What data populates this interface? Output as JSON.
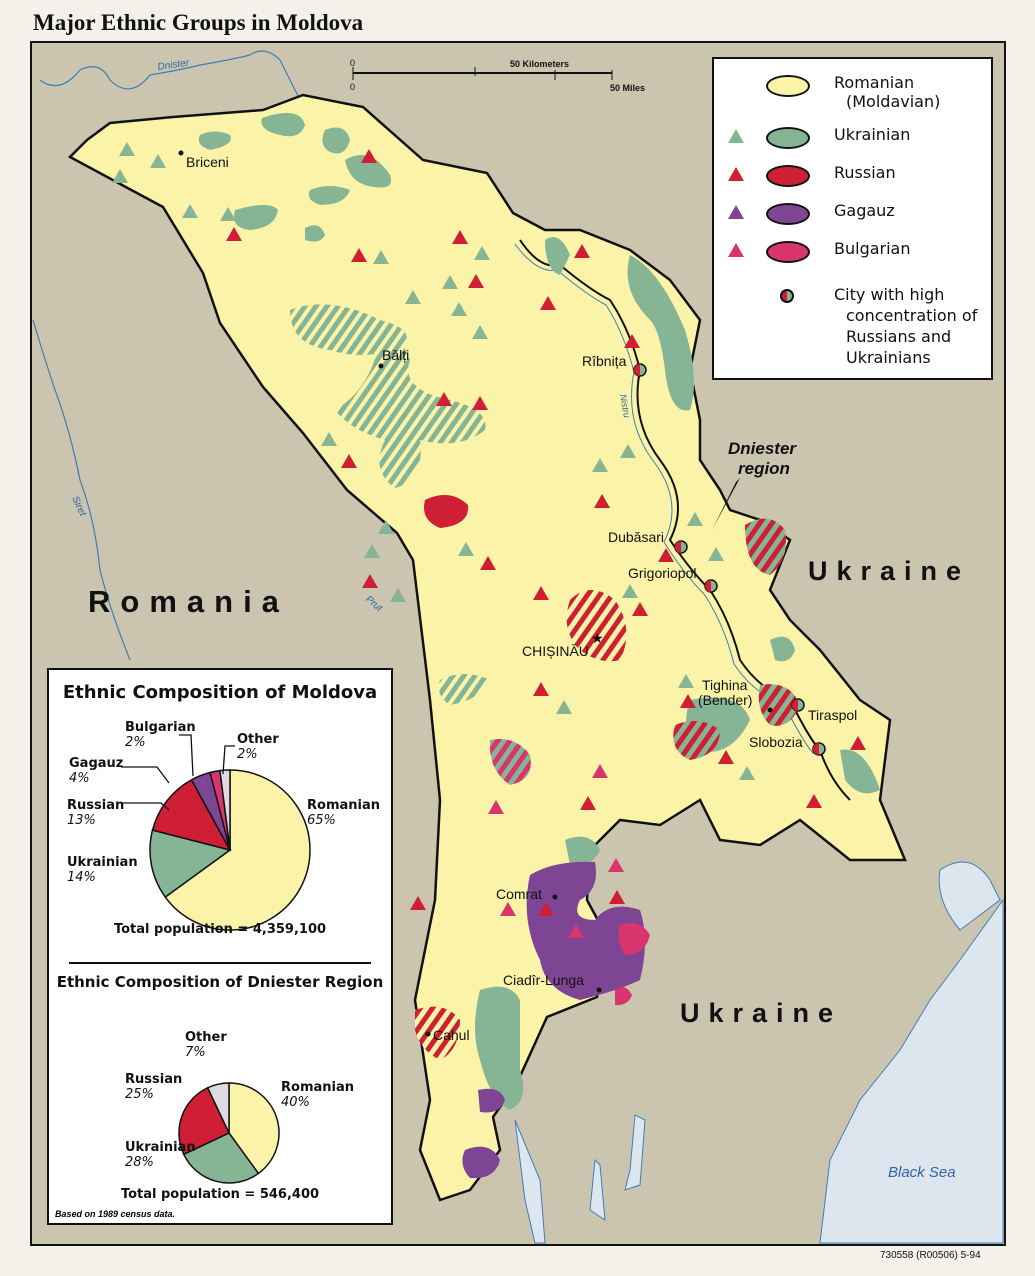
{
  "title": "Major Ethnic Groups in Moldova",
  "colors": {
    "background": "#cbc5b0",
    "romanian": "#fbf3a8",
    "ukrainian": "#86b596",
    "russian": "#cf1f34",
    "gagauz": "#7d4593",
    "bulgarian": "#d8356f",
    "other": "#dcdce0",
    "water": "#dde6ef",
    "river": "#3c7fb5"
  },
  "map": {
    "countries": [
      "Romania",
      "Ukraine",
      "Ukraine"
    ],
    "water_labels": [
      "Black Sea"
    ],
    "rivers": [
      "Dnister",
      "Siret",
      "Prut",
      "Nistru"
    ],
    "region_label": "Dniester region",
    "cities": [
      "Briceni",
      "Bălți",
      "Rîbnița",
      "Dubăsari",
      "Grigoriopol",
      "CHIȘINĂU",
      "Tighina (Bender)",
      "Tiraspol",
      "Slobozia",
      "Comrat",
      "Ciadîr-Lunga",
      "Cahul"
    ],
    "scale": {
      "zero_km": "0",
      "zero_mi": "0",
      "km_label": "50 Kilometers",
      "mi_label": "50 Miles"
    }
  },
  "legend": {
    "items": [
      {
        "label": "Romanian",
        "sub": "(Moldavian)",
        "icon": "romanian-area-swatch"
      },
      {
        "label": "Ukrainian",
        "icon": "ukrainian-triangle-and-area"
      },
      {
        "label": "Russian",
        "icon": "russian-triangle-and-area"
      },
      {
        "label": "Gagauz",
        "icon": "gagauz-triangle-and-area"
      },
      {
        "label": "Bulgarian",
        "icon": "bulgarian-triangle-and-area"
      }
    ],
    "city_item": {
      "line1": "City with high",
      "line2": "concentration of",
      "line3": "Russians and",
      "line4": "Ukrainians",
      "icon": "half-circle-city-icon"
    }
  },
  "chart_data": [
    {
      "type": "pie",
      "title": "Ethnic Composition of Moldova",
      "categories": [
        "Romanian",
        "Ukrainian",
        "Russian",
        "Gagauz",
        "Bulgarian",
        "Other"
      ],
      "values": [
        65,
        14,
        13,
        4,
        2,
        2
      ],
      "labels": [
        "65%",
        "14%",
        "13%",
        "4%",
        "2%",
        "2%"
      ],
      "total": "Total population = 4,359,100"
    },
    {
      "type": "pie",
      "title": "Ethnic Composition of Dniester Region",
      "categories": [
        "Romanian",
        "Ukrainian",
        "Russian",
        "Other"
      ],
      "values": [
        40,
        28,
        25,
        7
      ],
      "labels": [
        "40%",
        "28%",
        "25%",
        "7%"
      ],
      "total": "Total population = 546,400"
    }
  ],
  "source_note": "Based on 1989 census data.",
  "credit": "730558 (R00506) 5-94"
}
